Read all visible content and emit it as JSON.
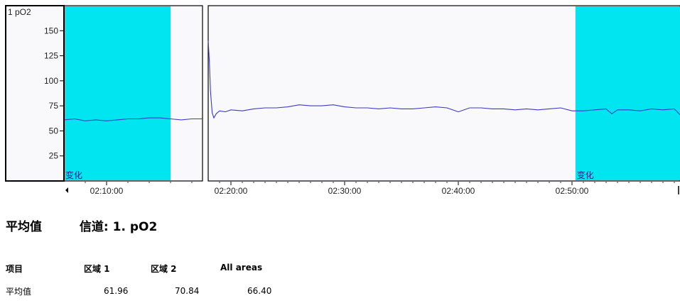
{
  "chart_data": {
    "type": "line",
    "channel_label": "1 pO2",
    "y_ticks": [
      150,
      125,
      100,
      75,
      50,
      25
    ],
    "ylim": [
      0,
      175
    ],
    "left_panel": {
      "x_ticks": [
        "02:10:00"
      ],
      "xlim_minutes": [
        128.0,
        134.5
      ],
      "highlight_minutes": [
        128.0,
        133.0
      ],
      "highlight_label": "变化",
      "series": {
        "x_minutes": [
          128.0,
          128.5,
          129.0,
          129.5,
          130.0,
          130.5,
          131.0,
          131.5,
          132.0,
          132.5,
          133.0,
          133.5,
          134.0,
          134.5
        ],
        "y": [
          61,
          62,
          60,
          61,
          60,
          61,
          62,
          62,
          63,
          63,
          62,
          61,
          62,
          62
        ]
      }
    },
    "right_panel": {
      "x_ticks": [
        "02:20:00",
        "02:30:00",
        "02:40:00",
        "02:50:00"
      ],
      "xlim_minutes": [
        138.0,
        179.5
      ],
      "highlight_minutes": [
        170.3,
        179.5
      ],
      "highlight_label": "变化",
      "series": {
        "x_minutes": [
          138.0,
          138.1,
          138.2,
          138.35,
          138.5,
          138.7,
          139.0,
          139.5,
          140.0,
          141.0,
          142.0,
          143.0,
          144.0,
          145.0,
          146.0,
          147.0,
          148.0,
          149.0,
          150.0,
          151.0,
          152.0,
          153.0,
          154.0,
          155.0,
          156.0,
          157.0,
          158.0,
          159.0,
          160.0,
          161.0,
          162.0,
          163.0,
          164.0,
          165.0,
          166.0,
          167.0,
          168.0,
          169.0,
          170.0,
          171.0,
          172.0,
          173.0,
          173.5,
          174.0,
          175.0,
          176.0,
          177.0,
          178.0,
          179.0,
          179.5
        ],
        "y": [
          140,
          120,
          90,
          68,
          63,
          67,
          70,
          69,
          71,
          70,
          72,
          73,
          73,
          74,
          76,
          75,
          75,
          76,
          74,
          73,
          73,
          72,
          73,
          72,
          72,
          73,
          74,
          73,
          69,
          73,
          73,
          72,
          72,
          71,
          72,
          71,
          72,
          73,
          70,
          70,
          71,
          72,
          67,
          71,
          71,
          70,
          72,
          71,
          72,
          66
        ]
      }
    },
    "line_color": "#3a3ac8",
    "highlight_color": "#00e5ef"
  },
  "stats": {
    "title_left": "平均值",
    "title_right": "信道: 1. pO2",
    "headers": [
      "项目",
      "区域 1",
      "区域 2",
      "All areas"
    ],
    "rows": [
      [
        "平均值",
        "61.96",
        "70.84",
        "66.40"
      ]
    ]
  }
}
